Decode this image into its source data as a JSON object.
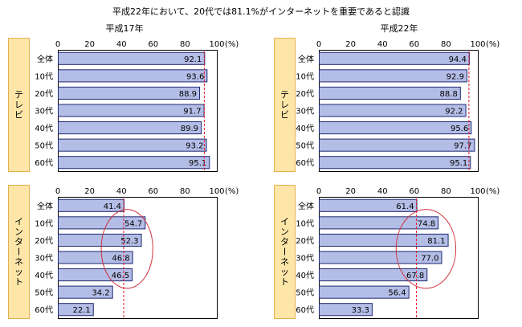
{
  "figure": {
    "title": "平成22年において、20代では81.1%がインターネットを重要であると認識",
    "unit": "(%)"
  },
  "colors": {
    "bar_fill": "#b4bde6",
    "bar_stroke": "#1f2a70",
    "side_label_fill": "#fde6a8",
    "side_label_stroke": "#e3b04d",
    "reference_line": "#e0142b",
    "highlight_ellipse": "#d0303a"
  },
  "chart_data": [
    {
      "type": "bar",
      "orientation": "horizontal",
      "column_title": "平成17年",
      "group_label": "テレビ",
      "categories": [
        "全体",
        "10代",
        "20代",
        "30代",
        "40代",
        "50代",
        "60代"
      ],
      "values": [
        92.1,
        93.6,
        88.9,
        91.7,
        89.9,
        93.2,
        95.1
      ],
      "xlim": [
        0,
        100
      ],
      "ticks": [
        "0",
        "20",
        "40",
        "60",
        "80",
        "100"
      ],
      "unit": "(%)",
      "reference_line": 92.1,
      "highlight": null
    },
    {
      "type": "bar",
      "orientation": "horizontal",
      "column_title": "平成22年",
      "group_label": "テレビ",
      "categories": [
        "全体",
        "10代",
        "20代",
        "30代",
        "40代",
        "50代",
        "60代"
      ],
      "values": [
        94.4,
        92.9,
        88.8,
        92.2,
        95.6,
        97.7,
        95.1
      ],
      "xlim": [
        0,
        100
      ],
      "ticks": [
        "0",
        "20",
        "40",
        "60",
        "80",
        "100"
      ],
      "unit": "(%)",
      "reference_line": 94.4,
      "highlight": null
    },
    {
      "type": "bar",
      "orientation": "horizontal",
      "column_title": "",
      "group_label": "インターネット",
      "categories": [
        "全体",
        "10代",
        "20代",
        "30代",
        "40代",
        "50代",
        "60代"
      ],
      "values": [
        41.4,
        54.7,
        52.3,
        46.8,
        46.5,
        34.2,
        22.1
      ],
      "xlim": [
        0,
        100
      ],
      "ticks": [
        "0",
        "20",
        "40",
        "60",
        "80",
        "100"
      ],
      "unit": "(%)",
      "reference_line": 41.4,
      "highlight": {
        "from": 1,
        "to": 4
      }
    },
    {
      "type": "bar",
      "orientation": "horizontal",
      "column_title": "",
      "group_label": "インターネット",
      "categories": [
        "全体",
        "10代",
        "20代",
        "30代",
        "40代",
        "50代",
        "60代"
      ],
      "values": [
        61.4,
        74.8,
        81.1,
        77.0,
        67.8,
        56.4,
        33.3
      ],
      "xlim": [
        0,
        100
      ],
      "ticks": [
        "0",
        "20",
        "40",
        "60",
        "80",
        "100"
      ],
      "unit": "(%)",
      "reference_line": 61.4,
      "highlight": {
        "from": 1,
        "to": 4
      }
    }
  ]
}
